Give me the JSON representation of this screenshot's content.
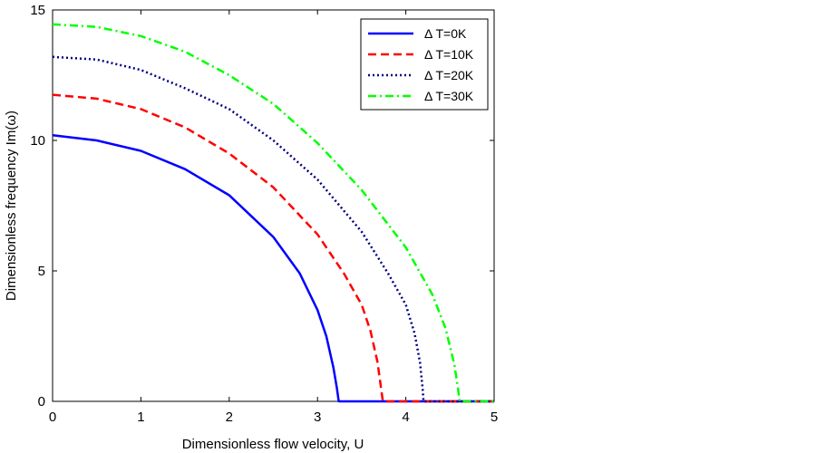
{
  "chart_data": {
    "type": "line",
    "title": "",
    "xlabel": "Dimensionless flow velocity, U",
    "ylabel": "Dimensionless frequency Im(ω)",
    "xlim": [
      0,
      5
    ],
    "ylim": [
      0,
      15
    ],
    "xticks": [
      "0",
      "1",
      "2",
      "3",
      "4",
      "5"
    ],
    "yticks": [
      "0",
      "5",
      "10",
      "15"
    ],
    "grid": false,
    "legend_position": "top-right",
    "series": [
      {
        "name": "Δ T=0K",
        "color": "#0000ff",
        "style": "solid",
        "x": [
          0,
          0.5,
          1.0,
          1.5,
          2.0,
          2.5,
          2.8,
          3.0,
          3.1,
          3.18,
          3.22,
          3.24,
          5.0
        ],
        "y": [
          10.2,
          10.0,
          9.6,
          8.9,
          7.9,
          6.3,
          4.9,
          3.5,
          2.5,
          1.3,
          0.5,
          0.0,
          0.0
        ]
      },
      {
        "name": "Δ T=10K",
        "color": "#ff0000",
        "style": "dashed",
        "x": [
          0,
          0.5,
          1.0,
          1.5,
          2.0,
          2.5,
          3.0,
          3.3,
          3.5,
          3.6,
          3.68,
          3.72,
          3.74,
          5.0
        ],
        "y": [
          11.75,
          11.6,
          11.2,
          10.5,
          9.5,
          8.2,
          6.4,
          4.9,
          3.7,
          2.7,
          1.5,
          0.5,
          0.0,
          0.0
        ]
      },
      {
        "name": "Δ T=20K",
        "color": "#000080",
        "style": "dotted",
        "x": [
          0,
          0.5,
          1.0,
          1.5,
          2.0,
          2.5,
          3.0,
          3.5,
          3.8,
          4.0,
          4.1,
          4.16,
          4.19,
          4.2,
          5.0
        ],
        "y": [
          13.2,
          13.1,
          12.7,
          12.0,
          11.2,
          10.0,
          8.5,
          6.5,
          4.9,
          3.7,
          2.6,
          1.5,
          0.5,
          0.0,
          0.0
        ]
      },
      {
        "name": "Δ T=30K",
        "color": "#00ff00",
        "style": "dashdot",
        "x": [
          0,
          0.5,
          1.0,
          1.5,
          2.0,
          2.5,
          3.0,
          3.5,
          4.0,
          4.3,
          4.45,
          4.55,
          4.59,
          4.61,
          5.0
        ],
        "y": [
          14.45,
          14.35,
          14.0,
          13.4,
          12.5,
          11.4,
          9.9,
          8.1,
          5.9,
          4.1,
          2.8,
          1.4,
          0.5,
          0.0,
          0.0
        ]
      }
    ]
  }
}
